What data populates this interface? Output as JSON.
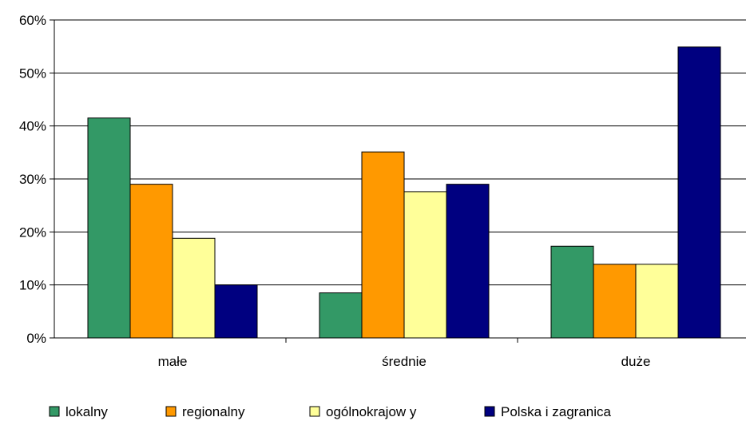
{
  "chart_data": {
    "type": "bar",
    "categories": [
      "małe",
      "średnie",
      "duże"
    ],
    "series": [
      {
        "name": "lokalny",
        "color": "#339966",
        "values": [
          41.5,
          8.5,
          17.3
        ]
      },
      {
        "name": "regionalny",
        "color": "#FF9900",
        "values": [
          29.0,
          35.1,
          13.9
        ]
      },
      {
        "name": "ogólnokrajow y",
        "color": "#FFFF99",
        "values": [
          18.8,
          27.6,
          13.9
        ]
      },
      {
        "name": "Polska i zagranica",
        "color": "#000080",
        "values": [
          10.0,
          29.0,
          54.9
        ]
      }
    ],
    "y_ticks": [
      "0%",
      "10%",
      "20%",
      "30%",
      "40%",
      "50%",
      "60%"
    ],
    "ylim": [
      0,
      60
    ],
    "y_unit": "%",
    "grid": true,
    "legend_position": "bottom",
    "title": "",
    "xlabel": "",
    "ylabel": ""
  }
}
